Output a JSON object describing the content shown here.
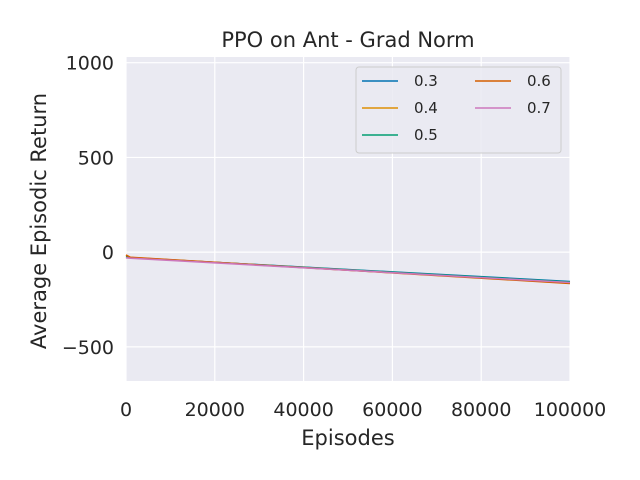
{
  "chart_data": {
    "type": "line",
    "title": "PPO on Ant - Grad Norm",
    "xlabel": "Episodes",
    "ylabel": "Average Episodic Return",
    "xlim": [
      0,
      100000
    ],
    "ylim": [
      -680,
      1030
    ],
    "xticks": [
      0,
      20000,
      40000,
      60000,
      80000,
      100000
    ],
    "xtick_labels": [
      "0",
      "20000",
      "40000",
      "60000",
      "80000",
      "100000"
    ],
    "yticks": [
      -500,
      0,
      500,
      1000
    ],
    "ytick_labels": [
      "−500",
      "0",
      "500",
      "1000"
    ],
    "grid": true,
    "legend_position": "top-right",
    "background": "#eaeaf2",
    "series": [
      {
        "name": "0.3",
        "color": "#0173b2",
        "x": [
          0,
          1000,
          100000
        ],
        "y": [
          -28,
          -30,
          -155
        ]
      },
      {
        "name": "0.4",
        "color": "#de8f05",
        "x": [
          0,
          1000,
          100000
        ],
        "y": [
          -18,
          -28,
          -162
        ]
      },
      {
        "name": "0.5",
        "color": "#029e73",
        "x": [
          0,
          1000,
          100000
        ],
        "y": [
          -25,
          -29,
          -158
        ]
      },
      {
        "name": "0.6",
        "color": "#d55e00",
        "x": [
          0,
          1000,
          100000
        ],
        "y": [
          -15,
          -27,
          -165
        ]
      },
      {
        "name": "0.7",
        "color": "#cc78bc",
        "x": [
          0,
          1000,
          100000
        ],
        "y": [
          -30,
          -32,
          -160
        ]
      }
    ]
  }
}
